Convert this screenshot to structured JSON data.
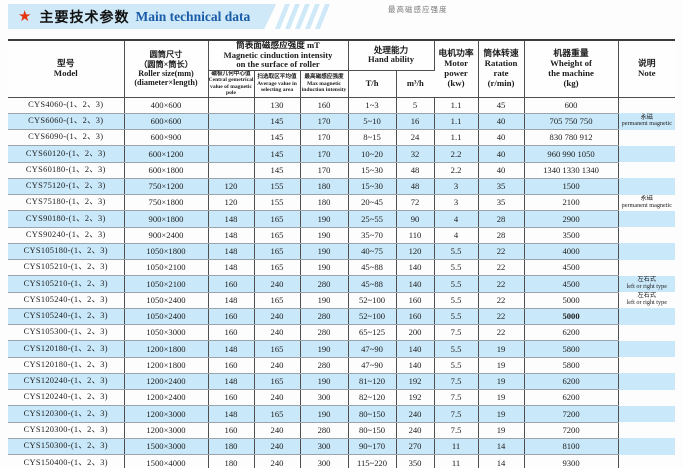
{
  "banner": {
    "star_icon": "★",
    "title_zh": "主要技术参数",
    "title_en": "Main technical data"
  },
  "floating_label": "最高磁感应强度",
  "colors": {
    "banner_bg": "#cfe9f8",
    "star_red": "#e5350e",
    "title_en_blue": "#1a5ca8",
    "row_stripe_blue": "#c9e8f9",
    "border_dark": "#3c3c3c"
  },
  "table": {
    "header": {
      "model": "型号\nModel",
      "size": "圆筒尺寸\n（圆筒×筒长）\nRoller size(mm)\n(diameter×length)",
      "mag_group": "筒表面磁感应强度 mT\nMagnetic cinduction intensity\non the surface of roller",
      "mag_central": "磁极几何中心值\nCentral gemetrical\nvalue of magnetic pole",
      "mag_average": "扫选取区平均值\nAverage value in\nselecting area",
      "mag_max": "最高磁感应强度\nMax magnetic\ninduction intensity",
      "hand_group": "处理能力\nHand ability",
      "hand_th": "T/h",
      "hand_m3h": "m³/h",
      "power": "电机功率\nMotor\npower\n(kw)",
      "rate": "筒体转速\nRatation\nrate\n(r/min)",
      "weight": "机器重量\nWheight of\nthe machine\n(kg)",
      "note": "说明\nNote"
    },
    "rows": [
      {
        "model": "CYS4060-(1、2、3)",
        "size": "400×600",
        "central": "",
        "average": "130",
        "max": "160",
        "th": "1~3",
        "m3h": "5",
        "power": "1.1",
        "rate": "45",
        "weight": "600",
        "note": ""
      },
      {
        "model": "CYS6060-(1、2、3)",
        "size": "600×600",
        "central": "",
        "average": "145",
        "max": "170",
        "th": "5~10",
        "m3h": "16",
        "power": "1.1",
        "rate": "40",
        "weight": "705 750 750",
        "note": "永磁\npermanent magnetic"
      },
      {
        "model": "CYS6090-(1、2、3)",
        "size": "600×900",
        "central": "",
        "average": "145",
        "max": "170",
        "th": "8~15",
        "m3h": "24",
        "power": "1.1",
        "rate": "40",
        "weight": "830 780 912",
        "note": ""
      },
      {
        "model": "CYS60120-(1、2、3)",
        "size": "600×1200",
        "central": "",
        "average": "145",
        "max": "170",
        "th": "10~20",
        "m3h": "32",
        "power": "2.2",
        "rate": "40",
        "weight": "960 990 1050",
        "note": ""
      },
      {
        "model": "CYS60180-(1、2、3)",
        "size": "600×1800",
        "central": "",
        "average": "145",
        "max": "170",
        "th": "15~30",
        "m3h": "48",
        "power": "2.2",
        "rate": "40",
        "weight": "1340 1330 1340",
        "note": ""
      },
      {
        "model": "CYS75120-(1、2、3)",
        "size": "750×1200",
        "central": "120",
        "average": "155",
        "max": "180",
        "th": "15~30",
        "m3h": "48",
        "power": "3",
        "rate": "35",
        "weight": "1500",
        "note": ""
      },
      {
        "model": "CYS75180-(1、2、3)",
        "size": "750×1800",
        "central": "120",
        "average": "155",
        "max": "180",
        "th": "20~45",
        "m3h": "72",
        "power": "3",
        "rate": "35",
        "weight": "2100",
        "note": "永磁\npermanent magnetic"
      },
      {
        "model": "CYS90180-(1、2、3)",
        "size": "900×1800",
        "central": "148",
        "average": "165",
        "max": "190",
        "th": "25~55",
        "m3h": "90",
        "power": "4",
        "rate": "28",
        "weight": "2900",
        "note": ""
      },
      {
        "model": "CYS90240-(1、2、3)",
        "size": "900×2400",
        "central": "148",
        "average": "165",
        "max": "190",
        "th": "35~70",
        "m3h": "110",
        "power": "4",
        "rate": "28",
        "weight": "3500",
        "note": ""
      },
      {
        "model": "CYS105180-(1、2、3)",
        "size": "1050×1800",
        "central": "148",
        "average": "165",
        "max": "190",
        "th": "40~75",
        "m3h": "120",
        "power": "5.5",
        "rate": "22",
        "weight": "4000",
        "note": ""
      },
      {
        "model": "CYS105210-(1、2、3)",
        "size": "1050×2100",
        "central": "148",
        "average": "165",
        "max": "190",
        "th": "45~88",
        "m3h": "140",
        "power": "5.5",
        "rate": "22",
        "weight": "4500",
        "note": ""
      },
      {
        "model": "CYS105210-(1、2、3)",
        "size": "1050×2100",
        "central": "160",
        "average": "240",
        "max": "280",
        "th": "45~88",
        "m3h": "140",
        "power": "5.5",
        "rate": "22",
        "weight": "4500",
        "note": "左右式\nleft or right type"
      },
      {
        "model": "CYS105240-(1、2、3)",
        "size": "1050×2400",
        "central": "148",
        "average": "165",
        "max": "190",
        "th": "52~100",
        "m3h": "160",
        "power": "5.5",
        "rate": "22",
        "weight": "5000",
        "note": "左右式\nleft or right type"
      },
      {
        "model": "CYS105240-(1、2、3)",
        "size": "1050×2400",
        "central": "160",
        "average": "240",
        "max": "280",
        "th": "52~100",
        "m3h": "160",
        "power": "5.5",
        "rate": "22",
        "weight": "5000",
        "note": "",
        "weight_bold": true
      },
      {
        "model": "CYS105300-(1、2、3)",
        "size": "1050×3000",
        "central": "160",
        "average": "240",
        "max": "280",
        "th": "65~125",
        "m3h": "200",
        "power": "7.5",
        "rate": "22",
        "weight": "6200",
        "note": ""
      },
      {
        "model": "CYS120180-(1、2、3)",
        "size": "1200×1800",
        "central": "148",
        "average": "165",
        "max": "190",
        "th": "47~90",
        "m3h": "140",
        "power": "5.5",
        "rate": "19",
        "weight": "5800",
        "note": ""
      },
      {
        "model": "CYS120180-(1、2、3)",
        "size": "1200×1800",
        "central": "160",
        "average": "240",
        "max": "280",
        "th": "47~90",
        "m3h": "140",
        "power": "5.5",
        "rate": "19",
        "weight": "5800",
        "note": ""
      },
      {
        "model": "CYS120240-(1、2、3)",
        "size": "1200×2400",
        "central": "148",
        "average": "165",
        "max": "190",
        "th": "81~120",
        "m3h": "192",
        "power": "7.5",
        "rate": "19",
        "weight": "6200",
        "note": ""
      },
      {
        "model": "CYS120240-(1、2、3)",
        "size": "1200×2400",
        "central": "160",
        "average": "240",
        "max": "300",
        "th": "82~120",
        "m3h": "192",
        "power": "7.5",
        "rate": "19",
        "weight": "6200",
        "note": ""
      },
      {
        "model": "CYS120300-(1、2、3)",
        "size": "1200×3000",
        "central": "148",
        "average": "165",
        "max": "190",
        "th": "80~150",
        "m3h": "240",
        "power": "7.5",
        "rate": "19",
        "weight": "7200",
        "note": ""
      },
      {
        "model": "CYS120300-(1、2、3)",
        "size": "1200×3000",
        "central": "160",
        "average": "240",
        "max": "280",
        "th": "80~150",
        "m3h": "240",
        "power": "7.5",
        "rate": "19",
        "weight": "7200",
        "note": ""
      },
      {
        "model": "CYS150300-(1、2、3)",
        "size": "1500×3000",
        "central": "180",
        "average": "240",
        "max": "300",
        "th": "90~170",
        "m3h": "270",
        "power": "11",
        "rate": "14",
        "weight": "8100",
        "note": ""
      },
      {
        "model": "CYS150400-(1、2、3)",
        "size": "1500×4000",
        "central": "180",
        "average": "240",
        "max": "300",
        "th": "115~220",
        "m3h": "350",
        "power": "11",
        "rate": "14",
        "weight": "9300",
        "note": ""
      }
    ]
  }
}
